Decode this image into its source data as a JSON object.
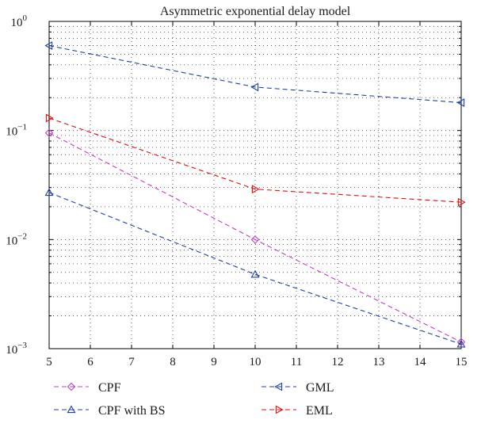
{
  "chart_data": {
    "type": "line",
    "title": "Asymmetric exponential delay model",
    "xlabel": "",
    "ylabel": "",
    "xlim": [
      5,
      15
    ],
    "ylim": [
      0.001,
      1
    ],
    "yscale": "log",
    "grid": true,
    "legend_position": "bottom",
    "x_ticks": [
      5,
      6,
      7,
      8,
      9,
      10,
      11,
      12,
      13,
      14,
      15
    ],
    "x_tick_labels": [
      "5",
      "6",
      "7",
      "8",
      "9",
      "10",
      "11",
      "12",
      "13",
      "14",
      "15"
    ],
    "y_ticks": [
      0.001,
      0.01,
      0.1,
      1
    ],
    "y_tick_labels": [
      {
        "base": "10",
        "exp": "−3"
      },
      {
        "base": "10",
        "exp": "−2"
      },
      {
        "base": "10",
        "exp": "−1"
      },
      {
        "base": "10",
        "exp": "0"
      }
    ],
    "series": [
      {
        "name": "CPF",
        "color": "#c040c0",
        "marker": "diamond",
        "x": [
          5,
          10,
          15
        ],
        "y": [
          0.095,
          0.01,
          0.00115
        ]
      },
      {
        "name": "CPF with BS",
        "color": "#2040a0",
        "marker": "triangle-up",
        "x": [
          5,
          10,
          15
        ],
        "y": [
          0.027,
          0.0048,
          0.0011
        ]
      },
      {
        "name": "GML",
        "color": "#2040a0",
        "marker": "triangle-left",
        "x": [
          5,
          10,
          15
        ],
        "y": [
          0.6,
          0.25,
          0.18
        ]
      },
      {
        "name": "EML",
        "color": "#e01010",
        "marker": "triangle-right",
        "x": [
          5,
          10,
          15
        ],
        "y": [
          0.13,
          0.029,
          0.022
        ]
      }
    ]
  }
}
